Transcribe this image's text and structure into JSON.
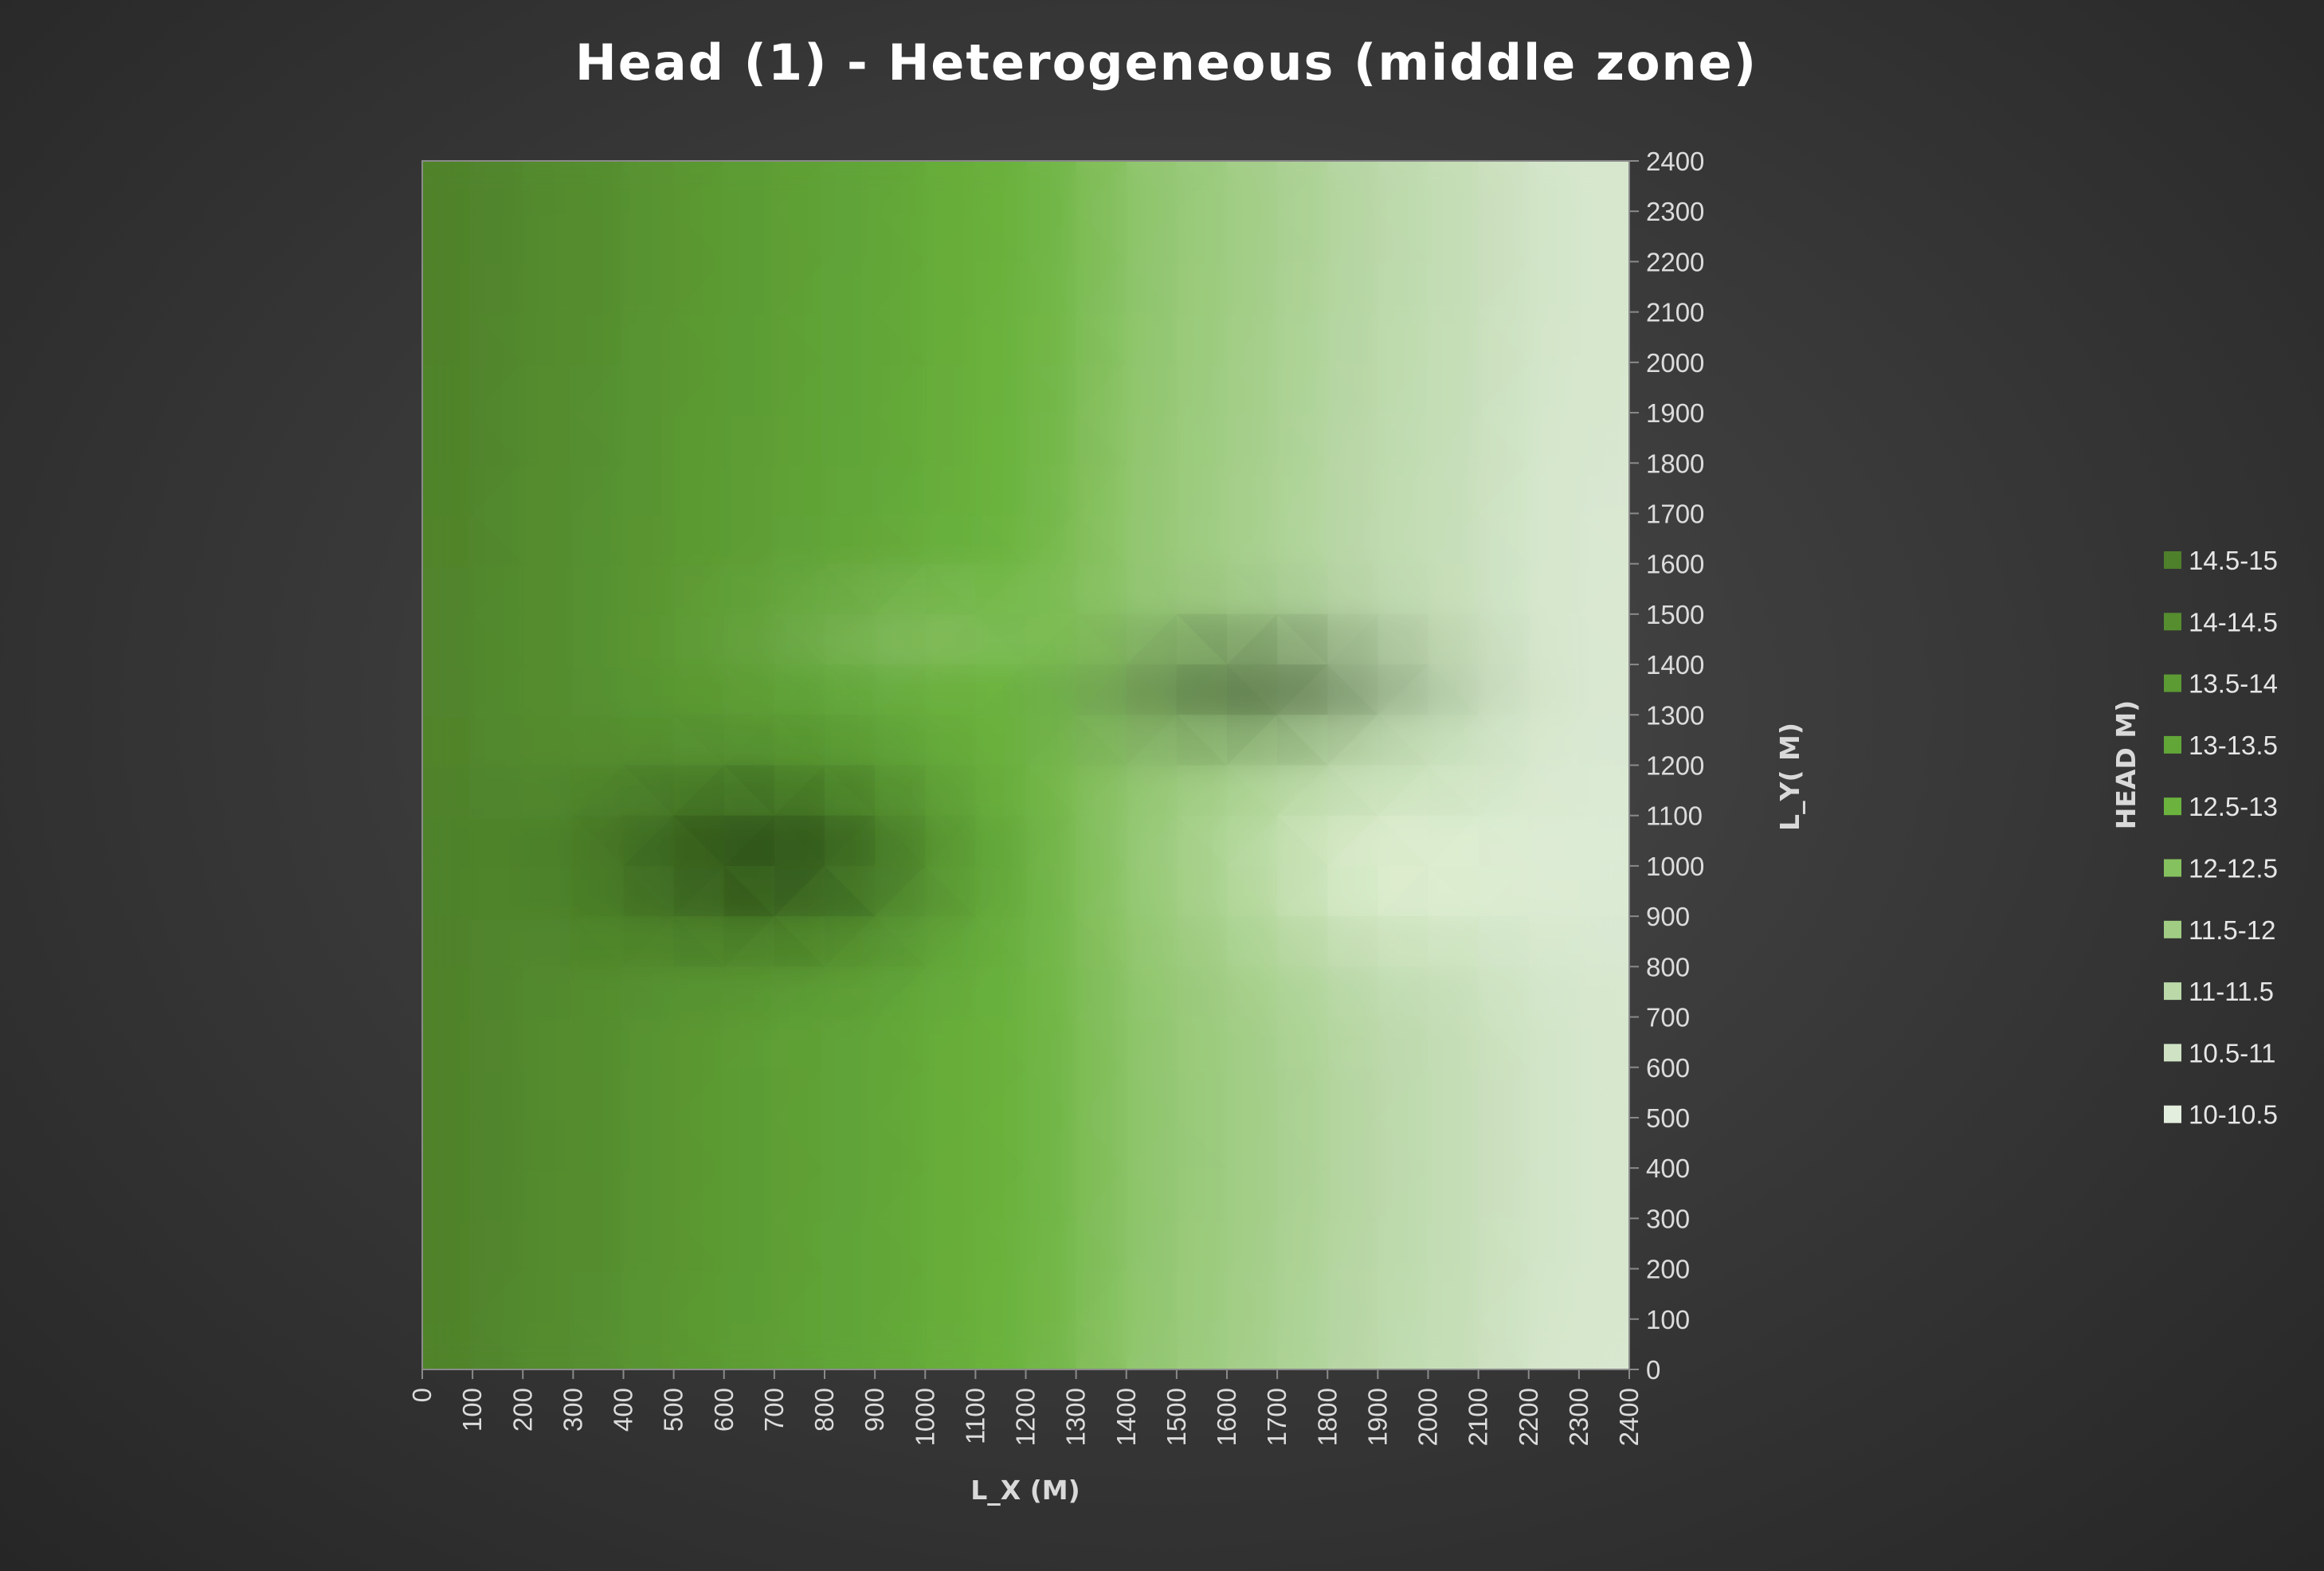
{
  "chart_data": {
    "type": "heatmap",
    "subtype": "surface-contour-2d",
    "title": "Head (1) - Heterogeneous (middle zone)",
    "xlabel": "L_X (M)",
    "ylabel": "L_Y( M)",
    "legend_title": "HEAD M)",
    "xlim": [
      0,
      2400
    ],
    "ylim": [
      0,
      2400
    ],
    "x_ticks": [
      "0",
      "100",
      "200",
      "300",
      "400",
      "500",
      "600",
      "700",
      "800",
      "900",
      "1000",
      "1100",
      "1200",
      "1300",
      "1400",
      "1500",
      "1600",
      "1700",
      "1800",
      "1900",
      "2000",
      "2100",
      "2200",
      "2300",
      "2400"
    ],
    "y_ticks": [
      "0",
      "100",
      "200",
      "300",
      "400",
      "500",
      "600",
      "700",
      "800",
      "900",
      "1000",
      "1100",
      "1200",
      "1300",
      "1400",
      "1500",
      "1600",
      "1700",
      "1800",
      "1900",
      "2000",
      "2100",
      "2200",
      "2300",
      "2400"
    ],
    "legend_placement": "right",
    "legend": [
      {
        "label": "14.5-15",
        "color": "#4e7f2b"
      },
      {
        "label": "14-14.5",
        "color": "#558d2f"
      },
      {
        "label": "13.5-14",
        "color": "#5c9a33"
      },
      {
        "label": "13-13.5",
        "color": "#62a638"
      },
      {
        "label": "12.5-13",
        "color": "#6bb33e"
      },
      {
        "label": "12-12.5",
        "color": "#86c15f"
      },
      {
        "label": "11.5-12",
        "color": "#a0cd83"
      },
      {
        "label": "11-11.5",
        "color": "#bad8a8"
      },
      {
        "label": "10.5-11",
        "color": "#cfe3c4"
      },
      {
        "label": "10-10.5",
        "color": "#e4eedf"
      }
    ],
    "x": [
      0,
      100,
      200,
      300,
      400,
      500,
      600,
      700,
      800,
      900,
      1000,
      1100,
      1200,
      1300,
      1400,
      1500,
      1600,
      1700,
      1800,
      1900,
      2000,
      2100,
      2200,
      2300,
      2400
    ],
    "y": [
      0,
      100,
      200,
      300,
      400,
      500,
      600,
      700,
      800,
      900,
      1000,
      1100,
      1200,
      1300,
      1400,
      1500,
      1600,
      1700,
      1800,
      1900,
      2000,
      2100,
      2200,
      2300,
      2400
    ],
    "z_base_by_x": [
      14.9,
      14.78,
      14.56,
      14.41,
      14.28,
      13.98,
      13.85,
      13.63,
      13.48,
      13.32,
      13.1,
      12.88,
      12.73,
      12.45,
      12.05,
      11.82,
      11.65,
      11.45,
      11.25,
      11.03,
      10.87,
      10.72,
      10.45,
      10.35,
      10.28
    ],
    "anomalies": [
      {
        "name": "low-head zone",
        "x_range": [
          300,
          1000
        ],
        "y_range": [
          900,
          1250
        ],
        "effect": "darker"
      },
      {
        "name": "high-gradient zone",
        "x_range": [
          1300,
          2300
        ],
        "y_range": [
          700,
          1150
        ],
        "effect": "lighter"
      },
      {
        "name": "upper dark band",
        "x_range": [
          1200,
          2000
        ],
        "y_range": [
          1250,
          1500
        ],
        "effect": "darker"
      }
    ]
  }
}
